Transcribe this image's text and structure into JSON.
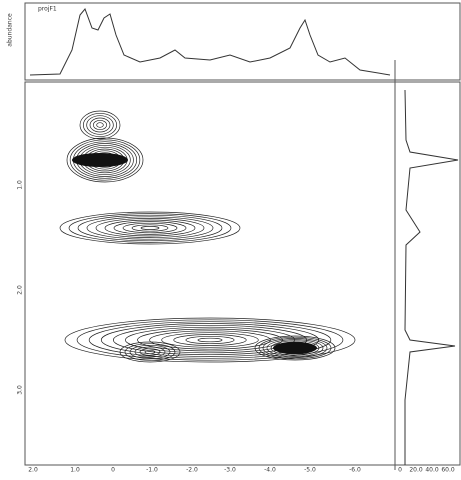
{
  "top_panel": {
    "label": "projF1",
    "axis_label": "abundance"
  },
  "x_ticks": [
    "2.0",
    "1.0",
    "0",
    "-1.0",
    "-2.0",
    "-3.0",
    "-4.0",
    "-5.0",
    "-6.0"
  ],
  "y_ticks": [
    "1.0",
    "2.0",
    "3.0"
  ],
  "right_ticks": [
    "0",
    "20.0",
    "40.0",
    "60.0"
  ]
}
